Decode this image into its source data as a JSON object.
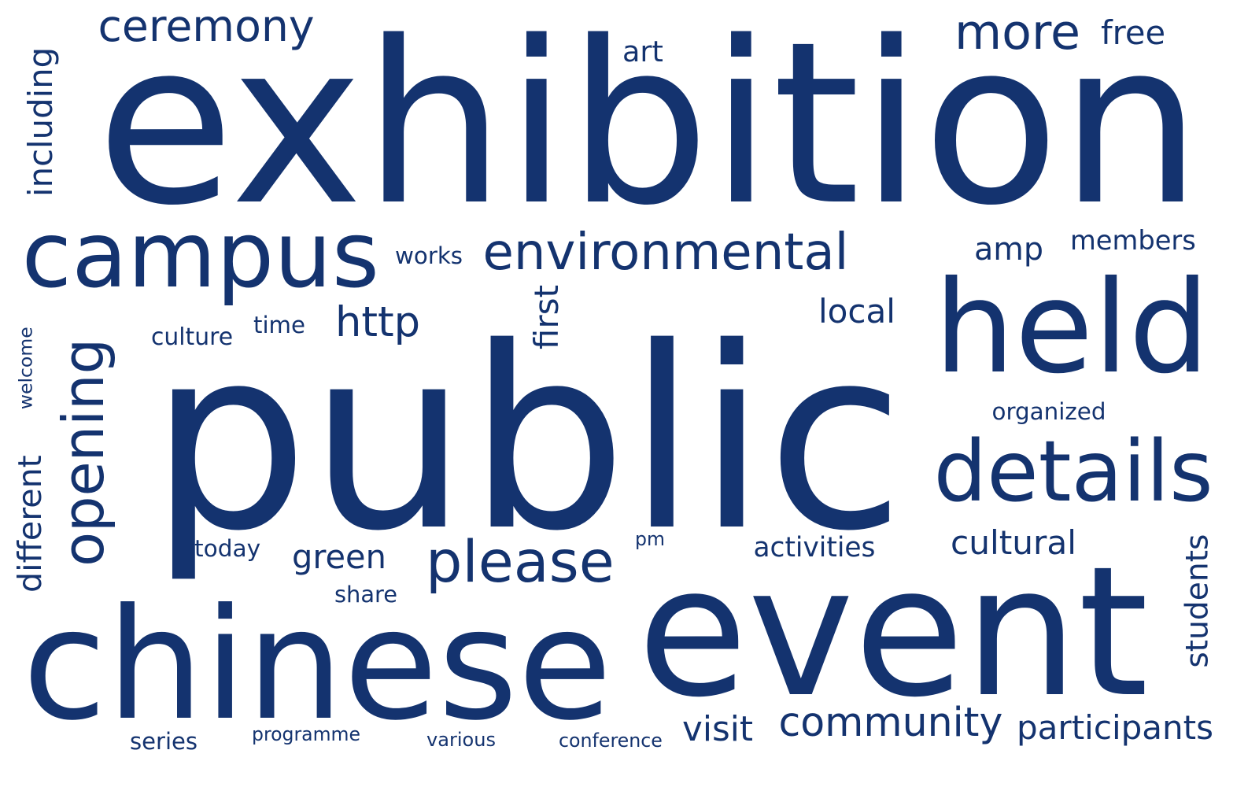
{
  "text_color": "#14336f",
  "background_color": "#ffffff",
  "words": [
    {
      "text": "exhibition",
      "weight": 100,
      "orientation": "horizontal"
    },
    {
      "text": "public",
      "weight": 95,
      "orientation": "horizontal"
    },
    {
      "text": "event",
      "weight": 80,
      "orientation": "horizontal"
    },
    {
      "text": "chinese",
      "weight": 72,
      "orientation": "horizontal"
    },
    {
      "text": "campus",
      "weight": 52,
      "orientation": "horizontal"
    },
    {
      "text": "held",
      "weight": 50,
      "orientation": "horizontal"
    },
    {
      "text": "details",
      "weight": 42,
      "orientation": "horizontal"
    },
    {
      "text": "environmental",
      "weight": 28,
      "orientation": "horizontal"
    },
    {
      "text": "more",
      "weight": 24,
      "orientation": "horizontal"
    },
    {
      "text": "ceremony",
      "weight": 20,
      "orientation": "horizontal"
    },
    {
      "text": "please",
      "weight": 28,
      "orientation": "horizontal"
    },
    {
      "text": "opening",
      "weight": 26,
      "orientation": "vertical"
    },
    {
      "text": "community",
      "weight": 20,
      "orientation": "horizontal"
    },
    {
      "text": "http",
      "weight": 18,
      "orientation": "horizontal"
    },
    {
      "text": "participants",
      "weight": 17,
      "orientation": "horizontal"
    },
    {
      "text": "visit",
      "weight": 17,
      "orientation": "horizontal"
    },
    {
      "text": "local",
      "weight": 16,
      "orientation": "horizontal"
    },
    {
      "text": "cultural",
      "weight": 16,
      "orientation": "horizontal"
    },
    {
      "text": "green",
      "weight": 16,
      "orientation": "horizontal"
    },
    {
      "text": "free",
      "weight": 15,
      "orientation": "horizontal"
    },
    {
      "text": "amp",
      "weight": 15,
      "orientation": "horizontal"
    },
    {
      "text": "first",
      "weight": 15,
      "orientation": "vertical"
    },
    {
      "text": "including",
      "weight": 14,
      "orientation": "vertical"
    },
    {
      "text": "different",
      "weight": 14,
      "orientation": "vertical"
    },
    {
      "text": "students",
      "weight": 14,
      "orientation": "vertical"
    },
    {
      "text": "activities",
      "weight": 13,
      "orientation": "horizontal"
    },
    {
      "text": "members",
      "weight": 13,
      "orientation": "horizontal"
    },
    {
      "text": "art",
      "weight": 13,
      "orientation": "horizontal"
    },
    {
      "text": "works",
      "weight": 11,
      "orientation": "horizontal"
    },
    {
      "text": "organized",
      "weight": 11,
      "orientation": "horizontal"
    },
    {
      "text": "culture",
      "weight": 11,
      "orientation": "horizontal"
    },
    {
      "text": "time",
      "weight": 11,
      "orientation": "horizontal"
    },
    {
      "text": "today",
      "weight": 11,
      "orientation": "horizontal"
    },
    {
      "text": "share",
      "weight": 11,
      "orientation": "horizontal"
    },
    {
      "text": "series",
      "weight": 11,
      "orientation": "horizontal"
    },
    {
      "text": "various",
      "weight": 10,
      "orientation": "horizontal"
    },
    {
      "text": "conference",
      "weight": 10,
      "orientation": "horizontal"
    },
    {
      "text": "programme",
      "weight": 10,
      "orientation": "horizontal"
    },
    {
      "text": "welcome",
      "weight": 9,
      "orientation": "vertical"
    },
    {
      "text": "pm",
      "weight": 9,
      "orientation": "horizontal"
    }
  ]
}
